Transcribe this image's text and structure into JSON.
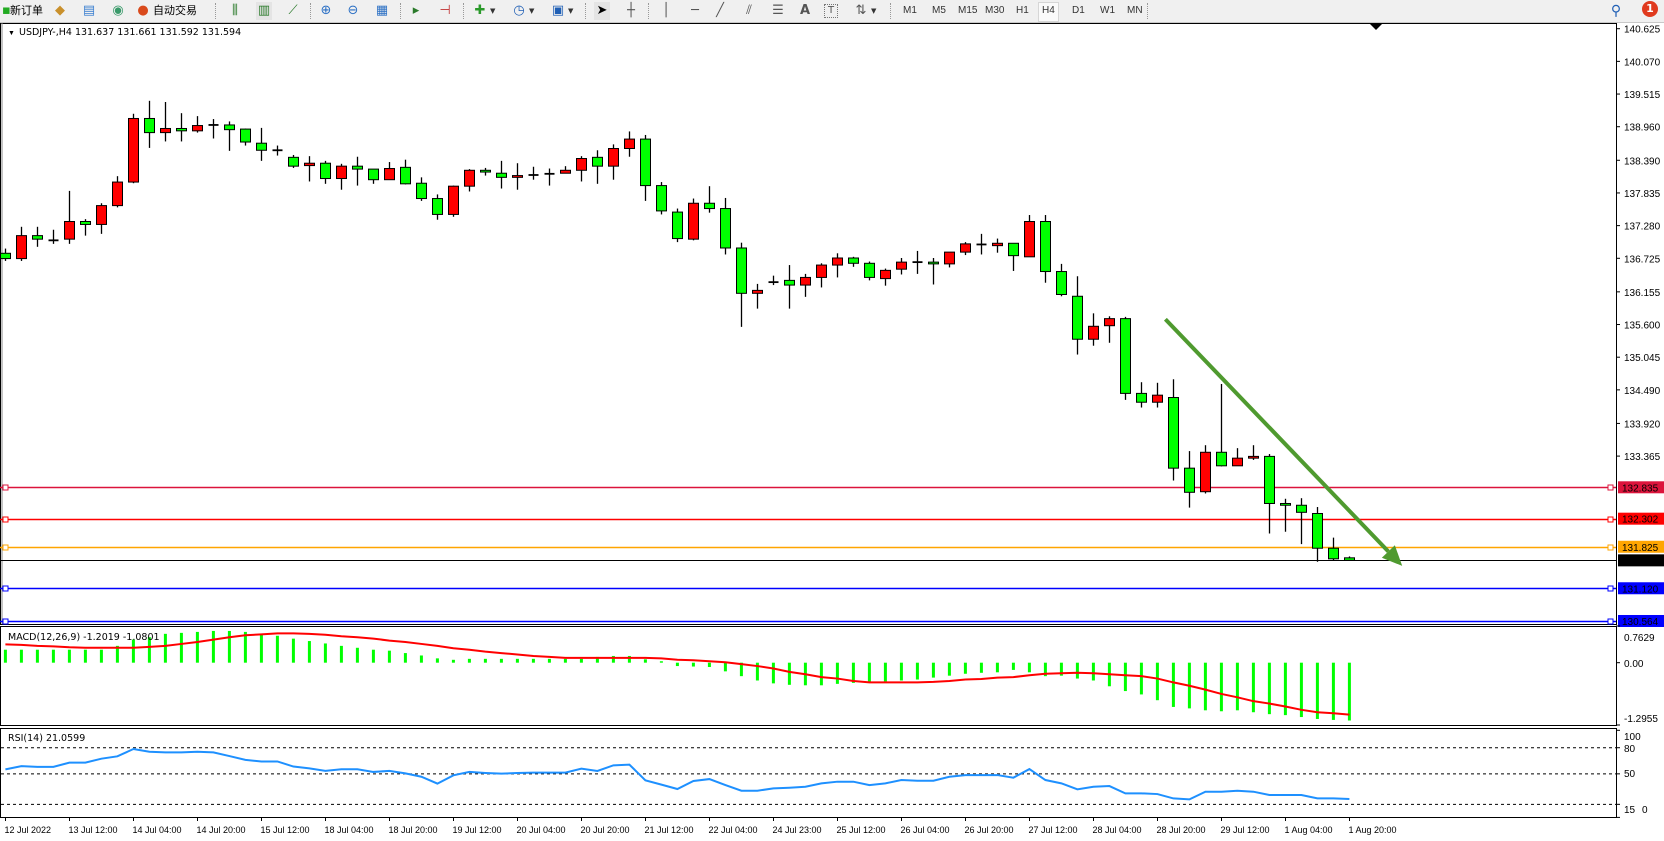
{
  "toolbar": {
    "new_order": "新订单",
    "auto_trading": "自动交易",
    "timeframes": [
      "M1",
      "M5",
      "M15",
      "M30",
      "H1",
      "H4",
      "D1",
      "W1",
      "MN"
    ],
    "active_timeframe": "H4",
    "notification_count": "1",
    "icons": [
      "new-order-icon",
      "market-watch-icon",
      "data-window-icon",
      "signals-icon",
      "auto-trading-icon",
      "bar-chart-icon",
      "candlestick-icon",
      "line-chart-icon",
      "zoom-in-icon",
      "zoom-out-icon",
      "tile-windows-icon",
      "auto-scroll-icon",
      "chart-shift-icon",
      "indicators-icon",
      "periods-icon",
      "templates-icon",
      "cursor-icon",
      "crosshair-icon",
      "vertical-line-icon",
      "horizontal-line-icon",
      "trendline-icon",
      "equidistant-channel-icon",
      "fibonacci-icon",
      "text-icon",
      "text-label-icon",
      "arrows-icon",
      "search-icon",
      "notification-icon"
    ]
  },
  "chart": {
    "symbol_info": "USDJPY-,H4  131.637 131.661 131.592 131.594",
    "colors": {
      "bull": "#FF0000",
      "bear": "#00FF00",
      "arrow": "#4F9A2F",
      "macd_hist": "#00FF00",
      "macd_signal": "#FF0000",
      "rsi": "#1E90FF"
    }
  },
  "chart_data": [
    {
      "type": "candlestick",
      "title": "USDJPY-,H4",
      "ylim": [
        130.564,
        140.625
      ],
      "y_ticks": [
        "140.625",
        "140.070",
        "139.515",
        "138.960",
        "138.390",
        "137.835",
        "137.280",
        "136.725",
        "136.155",
        "135.600",
        "135.045",
        "134.490",
        "133.920",
        "133.365"
      ],
      "x_tick_labels": [
        "12 Jul 2022",
        "13 Jul 12:00",
        "14 Jul 04:00",
        "14 Jul 20:00",
        "15 Jul 12:00",
        "18 Jul 04:00",
        "18 Jul 20:00",
        "19 Jul 12:00",
        "20 Jul 04:00",
        "20 Jul 20:00",
        "21 Jul 12:00",
        "22 Jul 04:00",
        "24 Jul 23:00",
        "25 Jul 12:00",
        "26 Jul 04:00",
        "26 Jul 20:00",
        "27 Jul 12:00",
        "28 Jul 04:00",
        "28 Jul 20:00",
        "29 Jul 12:00",
        "1 Aug 04:00",
        "1 Aug 20:00"
      ],
      "ohlc": [
        [
          136.81,
          136.89,
          136.68,
          136.72
        ],
        [
          136.72,
          137.26,
          136.68,
          137.11
        ],
        [
          137.11,
          137.26,
          136.92,
          137.05
        ],
        [
          137.03,
          137.21,
          136.97,
          137.03
        ],
        [
          137.05,
          137.87,
          136.97,
          137.35
        ],
        [
          137.35,
          137.39,
          137.11,
          137.3
        ],
        [
          137.3,
          137.66,
          137.14,
          137.62
        ],
        [
          137.62,
          138.12,
          137.59,
          138.02
        ],
        [
          138.02,
          139.18,
          138.0,
          139.1
        ],
        [
          139.1,
          139.4,
          138.6,
          138.86
        ],
        [
          138.86,
          139.38,
          138.71,
          138.93
        ],
        [
          138.93,
          139.19,
          138.71,
          138.89
        ],
        [
          138.89,
          139.14,
          138.86,
          138.98
        ],
        [
          138.99,
          139.09,
          138.76,
          138.99
        ],
        [
          138.99,
          139.05,
          138.55,
          138.91
        ],
        [
          138.92,
          138.93,
          138.64,
          138.7
        ],
        [
          138.68,
          138.94,
          138.38,
          138.56
        ],
        [
          138.56,
          138.64,
          138.47,
          138.56
        ],
        [
          138.44,
          138.48,
          138.26,
          138.29
        ],
        [
          138.3,
          138.46,
          138.03,
          138.34
        ],
        [
          138.34,
          138.38,
          137.99,
          138.08
        ],
        [
          138.08,
          138.33,
          137.89,
          138.29
        ],
        [
          138.29,
          138.45,
          137.96,
          138.24
        ],
        [
          138.24,
          138.24,
          137.99,
          138.06
        ],
        [
          138.06,
          138.36,
          138.06,
          138.25
        ],
        [
          138.27,
          138.4,
          137.98,
          137.99
        ],
        [
          138.0,
          138.1,
          137.7,
          137.74
        ],
        [
          137.74,
          137.81,
          137.38,
          137.47
        ],
        [
          137.47,
          137.96,
          137.43,
          137.95
        ],
        [
          137.95,
          138.24,
          137.86,
          138.22
        ],
        [
          138.22,
          138.26,
          138.13,
          138.19
        ],
        [
          138.17,
          138.38,
          137.91,
          138.1
        ],
        [
          138.1,
          138.34,
          137.89,
          138.13
        ],
        [
          138.14,
          138.28,
          138.06,
          138.14
        ],
        [
          138.16,
          138.25,
          137.96,
          138.16
        ],
        [
          138.17,
          138.29,
          138.17,
          138.22
        ],
        [
          138.22,
          138.46,
          138.03,
          138.42
        ],
        [
          138.44,
          138.56,
          137.99,
          138.29
        ],
        [
          138.29,
          138.66,
          138.06,
          138.59
        ],
        [
          138.59,
          138.88,
          138.45,
          138.75
        ],
        [
          138.75,
          138.82,
          137.7,
          137.96
        ],
        [
          137.96,
          138.02,
          137.47,
          137.53
        ],
        [
          137.51,
          137.57,
          137.0,
          137.06
        ],
        [
          137.05,
          137.74,
          137.03,
          137.66
        ],
        [
          137.66,
          137.95,
          137.5,
          137.57
        ],
        [
          137.57,
          137.75,
          136.79,
          136.9
        ],
        [
          136.9,
          136.99,
          135.56,
          136.13
        ],
        [
          136.13,
          136.29,
          135.87,
          136.18
        ],
        [
          136.32,
          136.43,
          136.27,
          136.32
        ],
        [
          136.35,
          136.61,
          135.87,
          136.27
        ],
        [
          136.27,
          136.46,
          136.07,
          136.4
        ],
        [
          136.4,
          136.64,
          136.23,
          136.61
        ],
        [
          136.61,
          136.81,
          136.4,
          136.73
        ],
        [
          136.73,
          136.75,
          136.58,
          136.64
        ],
        [
          136.64,
          136.67,
          136.35,
          136.4
        ],
        [
          136.38,
          136.55,
          136.26,
          136.52
        ],
        [
          136.54,
          136.73,
          136.45,
          136.66
        ],
        [
          136.66,
          136.85,
          136.46,
          136.66
        ],
        [
          136.66,
          136.73,
          136.28,
          136.63
        ],
        [
          136.63,
          136.83,
          136.57,
          136.83
        ],
        [
          136.83,
          137.0,
          136.78,
          136.97
        ],
        [
          136.96,
          137.14,
          136.79,
          136.96
        ],
        [
          136.94,
          137.06,
          136.82,
          136.98
        ],
        [
          136.98,
          136.98,
          136.51,
          136.77
        ],
        [
          136.75,
          137.46,
          136.75,
          137.35
        ],
        [
          137.35,
          137.46,
          136.31,
          136.5
        ],
        [
          136.5,
          136.63,
          136.08,
          136.11
        ],
        [
          136.08,
          136.42,
          135.09,
          135.35
        ],
        [
          135.35,
          135.79,
          135.24,
          135.57
        ],
        [
          135.58,
          135.74,
          135.29,
          135.7
        ],
        [
          135.7,
          135.73,
          134.32,
          134.43
        ],
        [
          134.43,
          134.62,
          134.19,
          134.28
        ],
        [
          134.28,
          134.61,
          134.19,
          134.4
        ],
        [
          134.36,
          134.67,
          132.95,
          133.16
        ],
        [
          133.16,
          133.45,
          132.49,
          132.75
        ],
        [
          132.76,
          133.55,
          132.73,
          133.43
        ],
        [
          133.43,
          134.59,
          133.19,
          133.2
        ],
        [
          133.2,
          133.5,
          133.2,
          133.33
        ],
        [
          133.33,
          133.55,
          133.3,
          133.36
        ],
        [
          133.36,
          133.4,
          132.05,
          132.56
        ],
        [
          132.56,
          132.64,
          132.08,
          132.53
        ],
        [
          132.53,
          132.65,
          131.87,
          132.41
        ],
        [
          132.39,
          132.5,
          131.57,
          131.8
        ],
        [
          131.8,
          131.98,
          131.59,
          131.62
        ],
        [
          131.637,
          131.661,
          131.592,
          131.594
        ]
      ],
      "horizontal_lines": [
        {
          "price": "132.835",
          "color": "#DC143C"
        },
        {
          "price": "132.302",
          "color": "#FF0000"
        },
        {
          "price": "131.825",
          "color": "#FFA500"
        },
        {
          "price": "131.594",
          "color": "#000000"
        },
        {
          "price": "131.120",
          "color": "#0000FF"
        },
        {
          "price": "130.564",
          "color": "#0000FF"
        }
      ],
      "arrow": {
        "from": {
          "bar": 72.5,
          "price": 135.69
        },
        "to": {
          "bar": 87.3,
          "price": 131.5
        }
      }
    },
    {
      "type": "bar+line",
      "title": "MACD(12,26,9) -1.2019 -1.0801",
      "ylim": [
        -1.2955,
        0.7629
      ],
      "y_ticks": [
        "0.7629",
        "0.00",
        "-1.2955"
      ],
      "histogram": [
        0.27,
        0.27,
        0.27,
        0.27,
        0.27,
        0.27,
        0.27,
        0.35,
        0.48,
        0.53,
        0.6,
        0.62,
        0.64,
        0.66,
        0.66,
        0.64,
        0.6,
        0.56,
        0.5,
        0.45,
        0.4,
        0.35,
        0.31,
        0.27,
        0.25,
        0.2,
        0.15,
        0.09,
        0.06,
        0.08,
        0.08,
        0.08,
        0.08,
        0.08,
        0.08,
        0.08,
        0.08,
        0.12,
        0.14,
        0.14,
        0.07,
        0.03,
        -0.07,
        -0.08,
        -0.09,
        -0.18,
        -0.28,
        -0.37,
        -0.43,
        -0.46,
        -0.47,
        -0.47,
        -0.44,
        -0.42,
        -0.4,
        -0.39,
        -0.37,
        -0.35,
        -0.31,
        -0.27,
        -0.23,
        -0.21,
        -0.2,
        -0.15,
        -0.2,
        -0.28,
        -0.27,
        -0.33,
        -0.37,
        -0.49,
        -0.59,
        -0.66,
        -0.78,
        -0.92,
        -0.95,
        -0.99,
        -1.01,
        -0.99,
        -1.03,
        -1.07,
        -1.09,
        -1.13,
        -1.17,
        -1.19,
        -1.2019
      ],
      "signal": [
        0.38,
        0.37,
        0.35,
        0.34,
        0.32,
        0.31,
        0.31,
        0.31,
        0.31,
        0.33,
        0.35,
        0.39,
        0.43,
        0.48,
        0.53,
        0.57,
        0.59,
        0.61,
        0.61,
        0.6,
        0.58,
        0.55,
        0.53,
        0.5,
        0.46,
        0.43,
        0.39,
        0.35,
        0.3,
        0.27,
        0.23,
        0.2,
        0.17,
        0.14,
        0.12,
        0.1,
        0.1,
        0.1,
        0.1,
        0.1,
        0.1,
        0.09,
        0.06,
        0.05,
        0.03,
        0.01,
        -0.03,
        -0.07,
        -0.12,
        -0.19,
        -0.24,
        -0.3,
        -0.33,
        -0.38,
        -0.41,
        -0.41,
        -0.41,
        -0.41,
        -0.4,
        -0.38,
        -0.35,
        -0.34,
        -0.31,
        -0.3,
        -0.26,
        -0.23,
        -0.22,
        -0.21,
        -0.22,
        -0.24,
        -0.26,
        -0.28,
        -0.33,
        -0.41,
        -0.48,
        -0.56,
        -0.65,
        -0.72,
        -0.8,
        -0.85,
        -0.91,
        -0.98,
        -1.03,
        -1.05,
        -1.0801
      ]
    },
    {
      "type": "line",
      "title": "RSI(14) 21.0599",
      "ylim": [
        0,
        100
      ],
      "y_ticks": [
        "100",
        "80",
        "50",
        "15",
        "0"
      ],
      "levels": [
        80,
        50,
        15
      ],
      "values": [
        55.1,
        58.8,
        58.0,
        58.0,
        62.9,
        62.9,
        67.4,
        70.1,
        78.5,
        75.4,
        74.6,
        74.6,
        75.4,
        74.6,
        70.4,
        66.1,
        64.2,
        64.2,
        58.4,
        56.3,
        53.4,
        55.3,
        55.3,
        52.2,
        53.4,
        50.5,
        46.7,
        38.8,
        48.3,
        52.2,
        51.0,
        50.2,
        51.0,
        51.4,
        51.4,
        51.4,
        56.0,
        53.3,
        59.8,
        60.6,
        42.6,
        37.6,
        32.6,
        41.8,
        44.0,
        37.1,
        30.6,
        30.6,
        33.3,
        34.1,
        35.2,
        39.1,
        41.0,
        41.0,
        37.1,
        39.1,
        42.9,
        42.1,
        42.1,
        46.7,
        48.6,
        48.6,
        48.6,
        45.6,
        55.5,
        42.9,
        39.1,
        32.2,
        35.2,
        36.0,
        27.6,
        27.6,
        26.8,
        21.8,
        20.7,
        29.5,
        29.5,
        30.6,
        29.5,
        25.7,
        25.7,
        25.7,
        21.8,
        21.8,
        21.06
      ]
    }
  ]
}
